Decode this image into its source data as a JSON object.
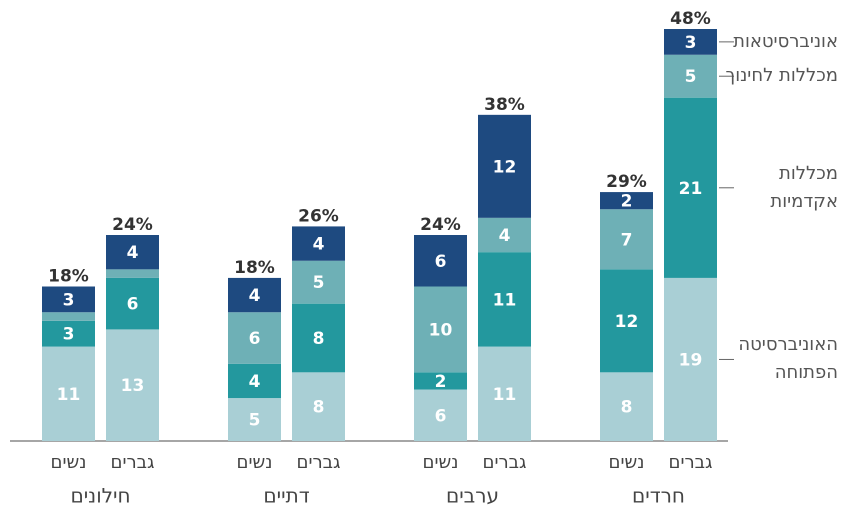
{
  "chart_data": {
    "type": "stacked_bar",
    "groups": [
      "חילונים",
      "דתיים",
      "ערבים",
      "חרדים"
    ],
    "categories": [
      "נשים",
      "גברים",
      "נשים",
      "גברים",
      "נשים",
      "גברים",
      "נשים",
      "גברים"
    ],
    "series": [
      {
        "name": "האוניברסיטה הפתוחה",
        "color": "#a9cfd5",
        "values": [
          11,
          13,
          5,
          8,
          6,
          11,
          8,
          19
        ]
      },
      {
        "name": "מכללות אקדמיות",
        "color": "#23989e",
        "values": [
          3,
          6,
          4,
          8,
          2,
          11,
          12,
          21
        ]
      },
      {
        "name": "מכללות לחינוך",
        "color": "#6eb0b6",
        "values": [
          1,
          1,
          6,
          5,
          10,
          4,
          7,
          5
        ],
        "value_labels": [
          null,
          null,
          "6",
          "5",
          "10",
          "4",
          "7",
          "5"
        ]
      },
      {
        "name": "אוניברסיטאות",
        "color": "#1e4a80",
        "values": [
          3,
          4,
          4,
          4,
          6,
          12,
          2,
          3
        ]
      }
    ],
    "total_labels": [
      "18%",
      "24%",
      "18%",
      "26%",
      "24%",
      "38%",
      "29%",
      "48%"
    ]
  }
}
